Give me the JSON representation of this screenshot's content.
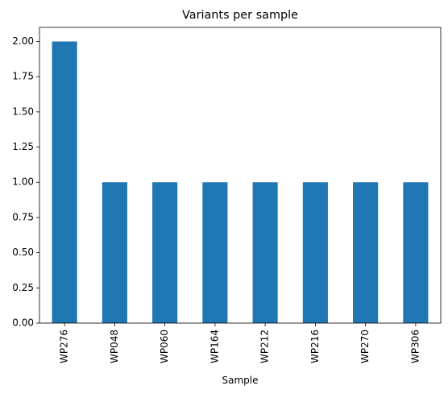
{
  "chart_data": {
    "type": "bar",
    "title": "Variants per sample",
    "xlabel": "Sample",
    "ylabel": "",
    "categories": [
      "WP276",
      "WP048",
      "WP060",
      "WP164",
      "WP212",
      "WP216",
      "WP270",
      "WP306"
    ],
    "values": [
      2,
      1,
      1,
      1,
      1,
      1,
      1,
      1
    ],
    "ylim": [
      0,
      2.1
    ],
    "yticks": [
      "0.00",
      "0.25",
      "0.50",
      "0.75",
      "1.00",
      "1.25",
      "1.50",
      "1.75",
      "2.00"
    ],
    "grid": false,
    "legend": "none",
    "bar_color": "#1f77b4"
  }
}
